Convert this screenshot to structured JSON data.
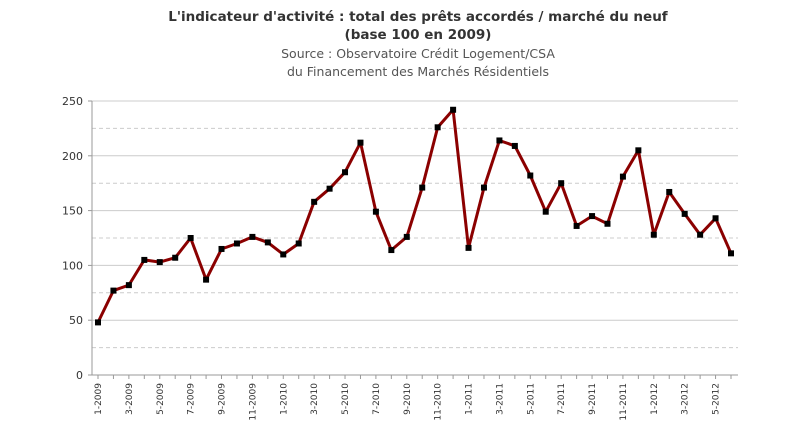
{
  "chart_data": {
    "type": "line",
    "title_line1": "L'indicateur d'activité : total des prêts accordés / marché du neuf",
    "title_line2": "(base 100 en 2009)",
    "subtitle_line1": "Source : Observatoire Crédit Logement/CSA",
    "subtitle_line2": "du Financement des Marchés Résidentiels",
    "xlabel": "",
    "ylabel": "",
    "ylim": [
      0,
      250
    ],
    "yticks": [
      0,
      50,
      100,
      150,
      200,
      250
    ],
    "grid": true,
    "categories": [
      "1-2009",
      "2-2009",
      "3-2009",
      "4-2009",
      "5-2009",
      "6-2009",
      "7-2009",
      "8-2009",
      "9-2009",
      "10-2009",
      "11-2009",
      "12-2009",
      "1-2010",
      "2-2010",
      "3-2010",
      "4-2010",
      "5-2010",
      "6-2010",
      "7-2010",
      "8-2010",
      "9-2010",
      "10-2010",
      "11-2010",
      "12-2010",
      "1-2011",
      "2-2011",
      "3-2011",
      "4-2011",
      "5-2011",
      "6-2011",
      "7-2011",
      "8-2011",
      "9-2011",
      "10-2011",
      "11-2011",
      "12-2011",
      "1-2012",
      "2-2012",
      "3-2012",
      "4-2012",
      "5-2012",
      "6-2012"
    ],
    "labeled_every": 2,
    "values": [
      48,
      77,
      82,
      105,
      103,
      107,
      125,
      87,
      115,
      120,
      126,
      121,
      110,
      120,
      158,
      170,
      185,
      212,
      149,
      114,
      126,
      171,
      226,
      242,
      116,
      171,
      214,
      209,
      182,
      149,
      175,
      136,
      145,
      138,
      181,
      205,
      128,
      167,
      147,
      128,
      143,
      111
    ],
    "colors": {
      "line": "#8b0000",
      "marker": "#000000",
      "grid": "#cccccc",
      "axis": "#999999"
    }
  }
}
